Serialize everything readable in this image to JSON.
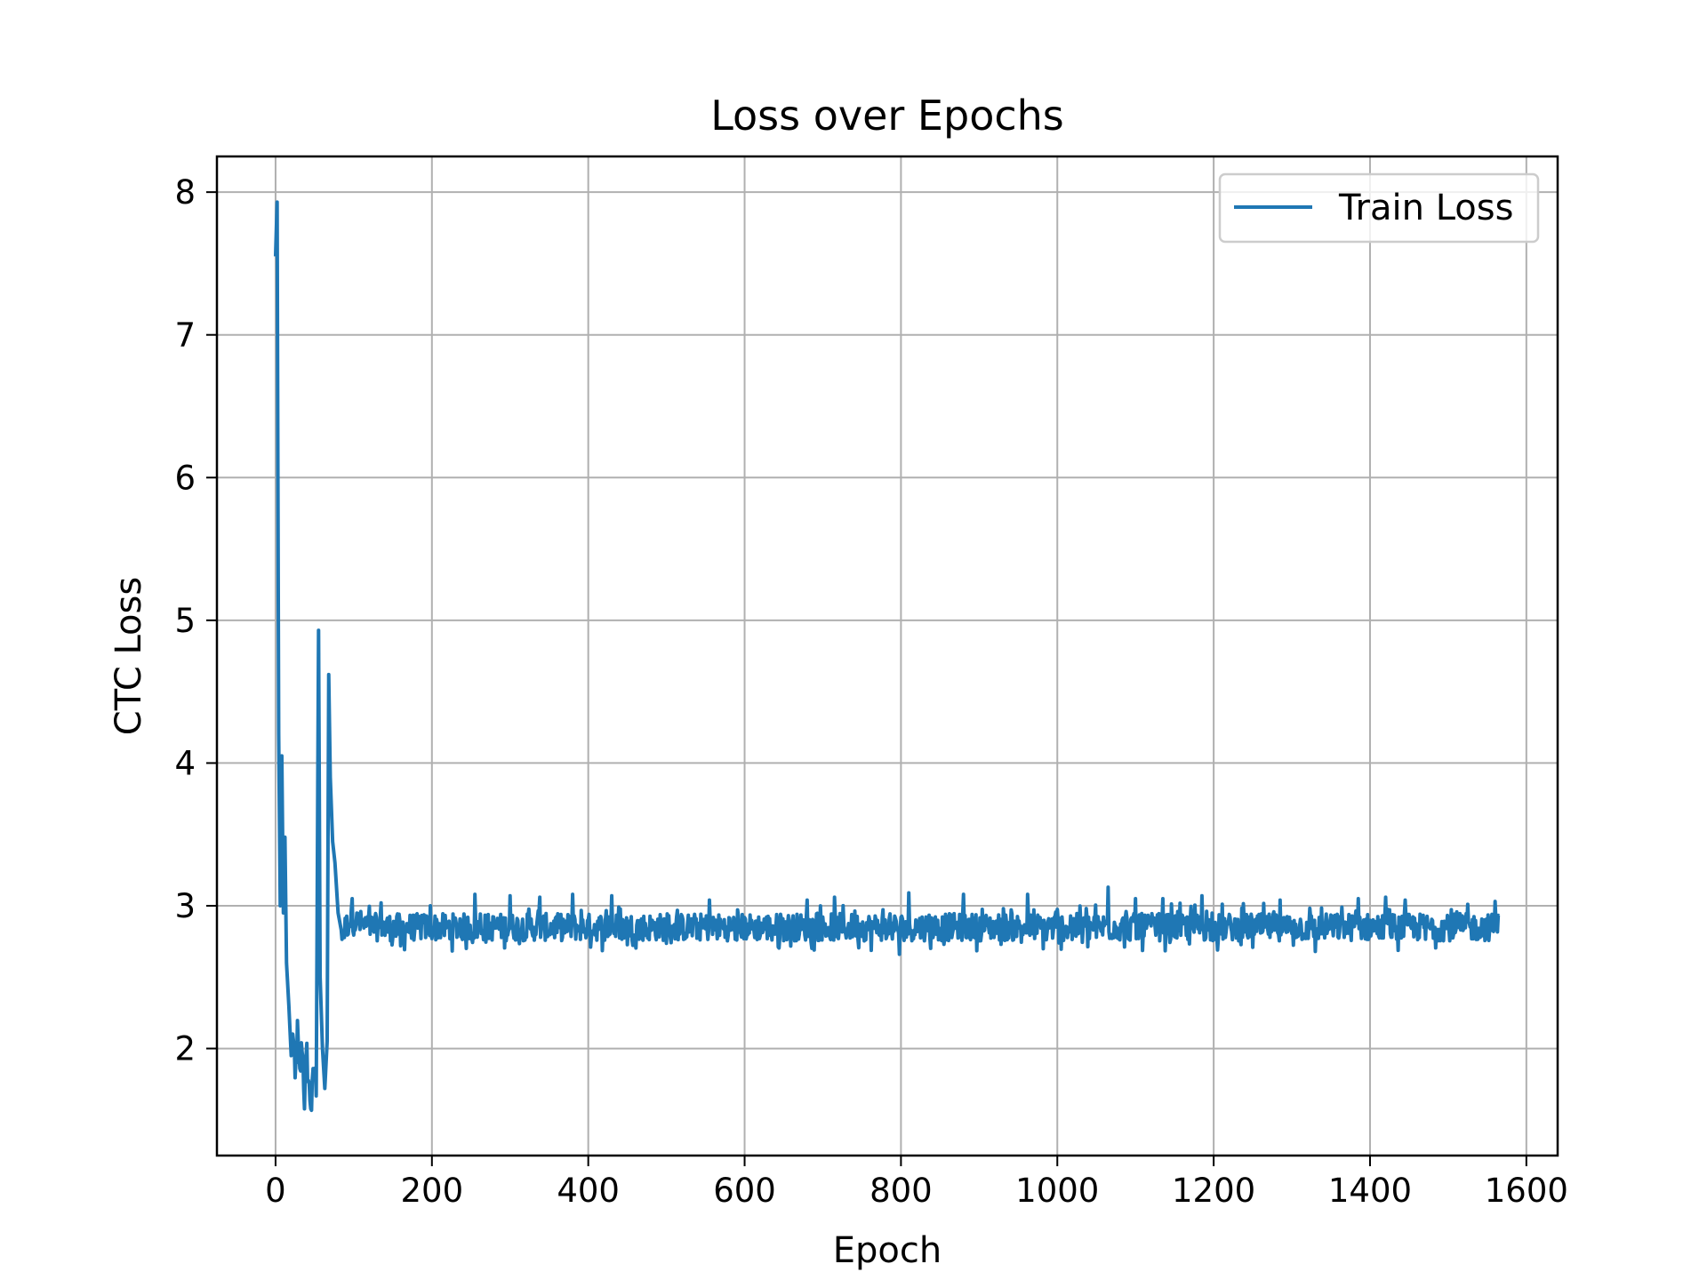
{
  "chart_data": {
    "type": "line",
    "title": "Loss over Epochs",
    "xlabel": "Epoch",
    "ylabel": "CTC Loss",
    "xlim": [
      -75,
      1640
    ],
    "ylim": [
      1.25,
      8.25
    ],
    "x_ticks": [
      0,
      200,
      400,
      600,
      800,
      1000,
      1200,
      1400,
      1600
    ],
    "y_ticks": [
      2,
      3,
      4,
      5,
      6,
      7,
      8
    ],
    "grid": true,
    "legend_position": "upper right",
    "line_color": "#1f77b4",
    "series": [
      {
        "name": "Train Loss",
        "x_start": 0,
        "x_end": 1565,
        "anchor_points": [
          [
            0,
            7.55
          ],
          [
            2,
            7.93
          ],
          [
            3,
            6.0
          ],
          [
            4,
            4.2
          ],
          [
            6,
            3.0
          ],
          [
            8,
            4.05
          ],
          [
            10,
            2.95
          ],
          [
            12,
            3.48
          ],
          [
            14,
            2.6
          ],
          [
            17,
            2.3
          ],
          [
            20,
            1.95
          ],
          [
            22,
            2.15
          ],
          [
            25,
            1.75
          ],
          [
            28,
            2.1
          ],
          [
            31,
            1.8
          ],
          [
            34,
            2.05
          ],
          [
            37,
            1.65
          ],
          [
            40,
            1.95
          ],
          [
            43,
            1.7
          ],
          [
            46,
            1.6
          ],
          [
            49,
            1.85
          ],
          [
            52,
            1.75
          ],
          [
            55,
            4.93
          ],
          [
            57,
            2.5
          ],
          [
            60,
            2.0
          ],
          [
            63,
            1.72
          ],
          [
            66,
            2.05
          ],
          [
            68,
            4.62
          ],
          [
            70,
            3.9
          ],
          [
            73,
            3.45
          ],
          [
            76,
            3.3
          ],
          [
            80,
            2.95
          ],
          [
            85,
            2.8
          ],
          [
            95,
            2.9
          ],
          [
            120,
            2.85
          ],
          [
            1565,
            2.85
          ]
        ],
        "noise_from_epoch": 85,
        "noise_amplitude": 0.12,
        "spikes": [
          [
            98,
            3.05
          ],
          [
            135,
            3.02
          ],
          [
            160,
            2.72
          ],
          [
            198,
            3.0
          ],
          [
            255,
            3.08
          ],
          [
            300,
            3.07
          ],
          [
            338,
            3.06
          ],
          [
            380,
            3.08
          ],
          [
            430,
            3.07
          ],
          [
            460,
            2.74
          ],
          [
            555,
            3.04
          ],
          [
            590,
            2.76
          ],
          [
            680,
            3.04
          ],
          [
            715,
            3.06
          ],
          [
            798,
            2.66
          ],
          [
            810,
            3.09
          ],
          [
            880,
            3.08
          ],
          [
            962,
            3.08
          ],
          [
            1002,
            2.74
          ],
          [
            1065,
            3.13
          ],
          [
            1100,
            3.05
          ],
          [
            1135,
            3.05
          ],
          [
            1185,
            3.07
          ],
          [
            1205,
            2.69
          ],
          [
            1285,
            3.04
          ],
          [
            1330,
            2.68
          ],
          [
            1385,
            3.05
          ],
          [
            1420,
            3.06
          ],
          [
            1445,
            3.04
          ],
          [
            1525,
            3.01
          ],
          [
            1550,
            2.78
          ],
          [
            1560,
            3.03
          ],
          [
            1565,
            2.93
          ]
        ]
      }
    ]
  }
}
